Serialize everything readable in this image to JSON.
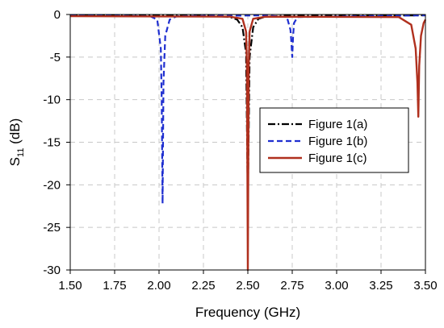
{
  "chart_data": {
    "type": "line",
    "title": "",
    "xlabel": "Frequency (GHz)",
    "ylabel_base": "S",
    "ylabel_sub": "11",
    "ylabel_unit": " (dB)",
    "xlim": [
      1.5,
      3.5
    ],
    "ylim": [
      -30,
      0
    ],
    "x_ticks": [
      "1.50",
      "1.75",
      "2.00",
      "2.25",
      "2.50",
      "2.75",
      "3.00",
      "3.25",
      "3.50"
    ],
    "y_ticks": [
      "0",
      "-5",
      "-10",
      "-15",
      "-20",
      "-25",
      "-30"
    ],
    "grid": true,
    "legend_position": "right",
    "series": [
      {
        "name": "Figure 1(a)",
        "color": "#000000",
        "style": "dash-dot",
        "x": [
          1.5,
          2.3,
          2.4,
          2.44,
          2.47,
          2.49,
          2.5,
          2.51,
          2.53,
          2.56,
          2.6,
          2.7,
          3.5
        ],
        "y": [
          -0.1,
          -0.15,
          -0.3,
          -0.6,
          -1.5,
          -4.5,
          -22,
          -5,
          -1.5,
          -0.5,
          -0.25,
          -0.15,
          -0.1
        ]
      },
      {
        "name": "Figure 1(b)",
        "color": "#1f2fd0",
        "style": "dash",
        "x": [
          1.5,
          1.95,
          1.99,
          2.01,
          2.015,
          2.02,
          2.025,
          2.035,
          2.06,
          2.1,
          2.6,
          2.72,
          2.74,
          2.745,
          2.75,
          2.755,
          2.76,
          2.78,
          3.5
        ],
        "y": [
          -0.1,
          -0.2,
          -0.6,
          -4,
          -10,
          -22.2,
          -8,
          -2.5,
          -0.6,
          -0.2,
          -0.1,
          -0.3,
          -1.8,
          -3.2,
          -5,
          -2.5,
          -1.0,
          -0.3,
          -0.1
        ]
      },
      {
        "name": "Figure 1(c)",
        "color": "#b0301e",
        "style": "solid",
        "x": [
          1.5,
          2.4,
          2.47,
          2.49,
          2.495,
          2.5,
          2.505,
          2.51,
          2.53,
          2.6,
          3.35,
          3.42,
          3.445,
          3.455,
          3.46,
          3.465,
          3.475,
          3.49,
          3.5
        ],
        "y": [
          -0.2,
          -0.25,
          -0.5,
          -2,
          -6,
          -30,
          -6,
          -2,
          -0.5,
          -0.25,
          -0.3,
          -1.2,
          -4,
          -8,
          -12,
          -6,
          -2.5,
          -1.0,
          -0.6
        ]
      }
    ]
  }
}
